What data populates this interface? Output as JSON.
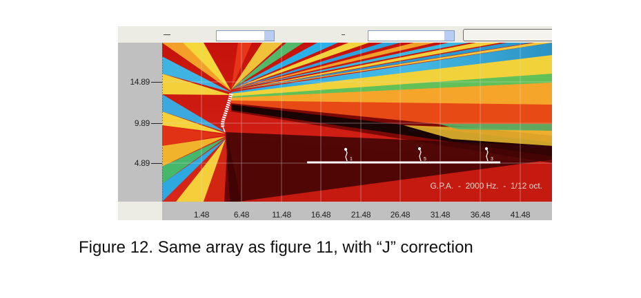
{
  "y_axis": {
    "ticks": [
      "14.89",
      "9.89",
      "4.89"
    ]
  },
  "x_axis": {
    "ticks": [
      "1.48",
      "6.48",
      "11.48",
      "16.48",
      "21.48",
      "26.48",
      "31.48",
      "36.48",
      "41.48"
    ]
  },
  "annotation": "G.P.A.  -  2000 Hz.  -  1/12 oct.",
  "listeners": [
    "1",
    "5",
    "3"
  ],
  "caption": "Figure 12.  Same array as figure 11, with “J” correction",
  "colors": {
    "toolbar": "#ecebe4",
    "axis_panel": "#c0c0c0",
    "field_border": "#7f9db9"
  }
}
